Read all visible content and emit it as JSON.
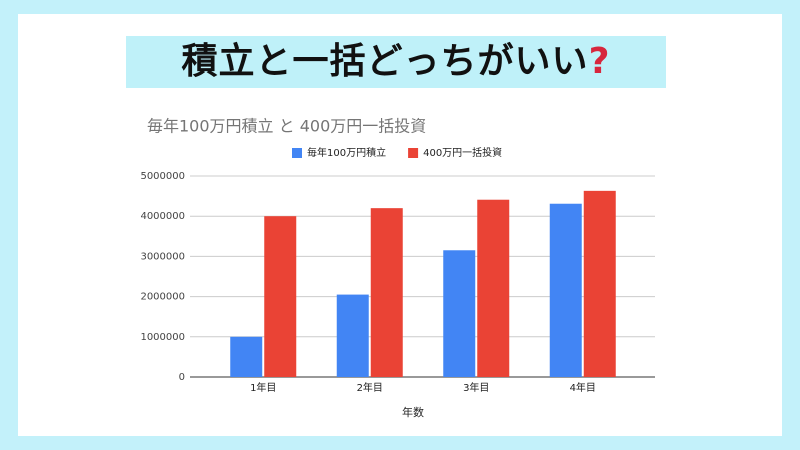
{
  "heading": "積立と一括どっちがいい",
  "heading_mark": "?",
  "chart_data": {
    "type": "bar",
    "title": "毎年100万円積立 と 400万円一括投資",
    "categories": [
      "1年目",
      "2年目",
      "3年目",
      "4年目"
    ],
    "series": [
      {
        "name": "毎年100万円積立",
        "color": "#4285f4",
        "values": [
          1000000,
          2050000,
          3152500,
          4310125
        ]
      },
      {
        "name": "400万円一括投資",
        "color": "#ea4335",
        "values": [
          4000000,
          4200000,
          4410000,
          4630500
        ]
      }
    ],
    "x_label": "年数",
    "ylim": [
      0,
      5000000
    ],
    "yticks": [
      0,
      1000000,
      2000000,
      3000000,
      4000000,
      5000000
    ],
    "grid": true,
    "legend": "top"
  }
}
